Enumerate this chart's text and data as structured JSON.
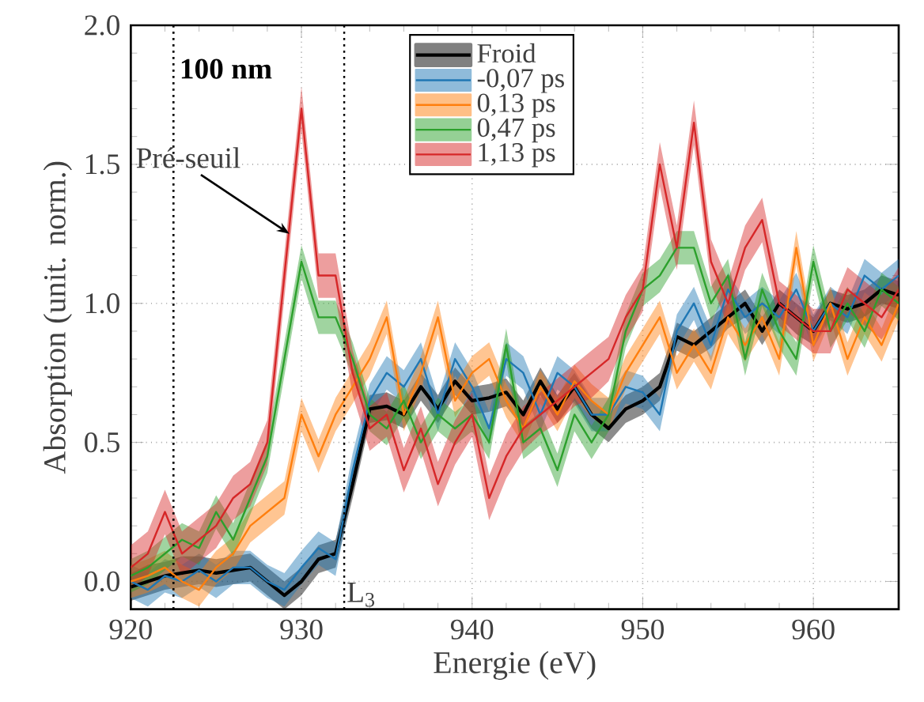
{
  "chart_data": {
    "type": "line",
    "xlabel": "Energie (eV)",
    "ylabel": "Absorption (unit. norm.)",
    "xlim": [
      920,
      965
    ],
    "ylim": [
      -0.1,
      2.0
    ],
    "xticks": [
      920,
      930,
      940,
      950,
      960
    ],
    "yticks": [
      {
        "value": 0,
        "label": "0.0"
      },
      {
        "value": 0.5,
        "label": "0.5"
      },
      {
        "value": 1,
        "label": "1.0"
      },
      {
        "value": 1.5,
        "label": "1.5"
      },
      {
        "value": 2,
        "label": "2.0"
      }
    ],
    "grid": true,
    "legend": "top",
    "marker": "none",
    "line_style": "solid",
    "x": [
      920,
      921,
      922,
      923,
      924,
      925,
      926,
      927,
      928,
      929,
      930,
      931,
      932,
      933,
      934,
      935,
      936,
      937,
      938,
      939,
      940,
      941,
      942,
      943,
      944,
      945,
      946,
      947,
      948,
      949,
      950,
      951,
      952,
      953,
      954,
      955,
      956,
      957,
      958,
      959,
      960,
      961,
      962,
      963,
      964,
      965
    ],
    "series": [
      {
        "name": "Froid",
        "color": "#000000",
        "values": [
          -0.02,
          0.0,
          0.02,
          0.03,
          0.04,
          0.03,
          0.04,
          0.05,
          0.0,
          -0.05,
          0.0,
          0.08,
          0.1,
          0.35,
          0.62,
          0.63,
          0.6,
          0.7,
          0.62,
          0.72,
          0.65,
          0.66,
          0.68,
          0.6,
          0.72,
          0.62,
          0.7,
          0.6,
          0.55,
          0.62,
          0.65,
          0.7,
          0.88,
          0.85,
          0.9,
          0.95,
          1.0,
          0.9,
          1.0,
          0.95,
          0.9,
          1.0,
          0.98,
          1.0,
          1.05,
          1.03
        ],
        "lower": [
          -0.07,
          -0.05,
          -0.03,
          -0.02,
          -0.01,
          -0.02,
          -0.01,
          0.0,
          -0.05,
          -0.1,
          -0.05,
          0.03,
          0.05,
          0.3,
          0.57,
          0.58,
          0.55,
          0.65,
          0.57,
          0.67,
          0.6,
          0.61,
          0.63,
          0.55,
          0.67,
          0.57,
          0.65,
          0.55,
          0.5,
          0.57,
          0.6,
          0.65,
          0.83,
          0.8,
          0.84,
          0.91,
          0.95,
          0.85,
          0.95,
          0.89,
          0.85,
          0.95,
          0.93,
          0.95,
          1.0,
          0.98
        ],
        "upper": [
          0.03,
          0.06,
          0.07,
          0.09,
          0.09,
          0.08,
          0.09,
          0.1,
          0.05,
          0.0,
          0.05,
          0.13,
          0.15,
          0.4,
          0.67,
          0.68,
          0.65,
          0.75,
          0.67,
          0.77,
          0.7,
          0.71,
          0.73,
          0.65,
          0.77,
          0.67,
          0.75,
          0.65,
          0.6,
          0.67,
          0.7,
          0.75,
          0.93,
          0.9,
          0.95,
          1.0,
          1.05,
          0.95,
          1.05,
          1.0,
          0.95,
          1.05,
          1.03,
          1.05,
          1.1,
          1.08
        ]
      },
      {
        "name": "-0,07 ps",
        "color": "#1f77b4",
        "values": [
          0.0,
          -0.03,
          0.02,
          0.0,
          0.04,
          0.0,
          0.05,
          0.05,
          0.0,
          -0.03,
          0.05,
          0.12,
          0.08,
          0.4,
          0.65,
          0.75,
          0.7,
          0.8,
          0.6,
          0.8,
          0.7,
          0.55,
          0.8,
          0.75,
          0.6,
          0.75,
          0.7,
          0.6,
          0.6,
          0.7,
          0.68,
          0.6,
          0.9,
          1.0,
          0.85,
          1.05,
          0.95,
          1.0,
          0.95,
          1.05,
          0.9,
          1.0,
          0.95,
          1.1,
          1.05,
          1.1
        ],
        "lower": [
          -0.06,
          -0.09,
          -0.04,
          -0.06,
          -0.02,
          -0.06,
          -0.01,
          -0.01,
          -0.06,
          -0.09,
          -0.01,
          0.06,
          0.02,
          0.34,
          0.59,
          0.69,
          0.64,
          0.74,
          0.54,
          0.74,
          0.64,
          0.49,
          0.74,
          0.69,
          0.54,
          0.69,
          0.64,
          0.54,
          0.54,
          0.64,
          0.62,
          0.54,
          0.84,
          0.94,
          0.79,
          0.99,
          0.89,
          0.94,
          0.89,
          0.99,
          0.84,
          0.94,
          0.89,
          1.04,
          0.99,
          1.04
        ],
        "upper": [
          0.06,
          0.03,
          0.08,
          0.06,
          0.1,
          0.06,
          0.11,
          0.11,
          0.06,
          0.03,
          0.11,
          0.18,
          0.14,
          0.46,
          0.71,
          0.81,
          0.76,
          0.86,
          0.66,
          0.86,
          0.76,
          0.61,
          0.86,
          0.81,
          0.66,
          0.81,
          0.76,
          0.66,
          0.66,
          0.76,
          0.74,
          0.66,
          0.96,
          1.06,
          0.91,
          1.11,
          1.01,
          1.06,
          1.01,
          1.11,
          0.96,
          1.06,
          1.01,
          1.16,
          1.11,
          1.16
        ]
      },
      {
        "name": "0,13 ps",
        "color": "#ff7f0e",
        "values": [
          0.0,
          0.02,
          0.05,
          0.0,
          -0.03,
          0.05,
          0.1,
          0.2,
          0.25,
          0.3,
          0.6,
          0.45,
          0.6,
          0.7,
          0.8,
          0.95,
          0.6,
          0.75,
          0.95,
          0.65,
          0.75,
          0.8,
          0.65,
          0.55,
          0.7,
          0.6,
          0.72,
          0.65,
          0.6,
          0.75,
          0.85,
          0.95,
          0.75,
          0.85,
          0.75,
          0.95,
          0.85,
          0.95,
          0.8,
          1.2,
          0.85,
          1.0,
          0.8,
          0.95,
          0.85,
          1.0
        ],
        "lower": [
          -0.06,
          -0.04,
          -0.01,
          -0.06,
          -0.09,
          -0.01,
          0.04,
          0.14,
          0.19,
          0.24,
          0.54,
          0.39,
          0.54,
          0.64,
          0.74,
          0.89,
          0.54,
          0.69,
          0.89,
          0.59,
          0.69,
          0.74,
          0.59,
          0.49,
          0.64,
          0.54,
          0.66,
          0.59,
          0.54,
          0.69,
          0.79,
          0.89,
          0.69,
          0.79,
          0.69,
          0.89,
          0.79,
          0.89,
          0.74,
          1.14,
          0.79,
          0.94,
          0.74,
          0.89,
          0.79,
          0.94
        ],
        "upper": [
          0.06,
          0.08,
          0.11,
          0.06,
          0.03,
          0.11,
          0.16,
          0.26,
          0.31,
          0.36,
          0.66,
          0.51,
          0.66,
          0.76,
          0.86,
          1.01,
          0.66,
          0.81,
          1.01,
          0.71,
          0.81,
          0.86,
          0.71,
          0.61,
          0.76,
          0.66,
          0.78,
          0.71,
          0.66,
          0.81,
          0.91,
          1.01,
          0.81,
          0.91,
          0.81,
          1.01,
          0.91,
          1.01,
          0.86,
          1.26,
          0.91,
          1.06,
          0.86,
          1.01,
          0.91,
          1.06
        ]
      },
      {
        "name": "0,47 ps",
        "color": "#2ca02c",
        "values": [
          0.02,
          0.05,
          0.1,
          0.15,
          0.12,
          0.25,
          0.15,
          0.3,
          0.45,
          0.8,
          1.15,
          0.95,
          0.95,
          0.8,
          0.6,
          0.55,
          0.65,
          0.5,
          0.6,
          0.55,
          0.6,
          0.5,
          0.85,
          0.5,
          0.55,
          0.4,
          0.6,
          0.5,
          0.6,
          0.9,
          1.05,
          1.1,
          1.2,
          1.2,
          1.0,
          1.1,
          0.8,
          1.05,
          0.9,
          0.8,
          1.15,
          0.9,
          1.0,
          0.9,
          1.05,
          1.0
        ],
        "lower": [
          -0.04,
          -0.01,
          0.04,
          0.09,
          0.06,
          0.19,
          0.09,
          0.24,
          0.39,
          0.74,
          1.09,
          0.89,
          0.89,
          0.74,
          0.54,
          0.49,
          0.59,
          0.44,
          0.54,
          0.49,
          0.54,
          0.44,
          0.79,
          0.44,
          0.49,
          0.34,
          0.54,
          0.44,
          0.54,
          0.84,
          0.99,
          1.04,
          1.14,
          1.14,
          0.94,
          1.04,
          0.74,
          0.99,
          0.84,
          0.74,
          1.09,
          0.84,
          0.94,
          0.84,
          0.99,
          0.94
        ],
        "upper": [
          0.08,
          0.11,
          0.16,
          0.21,
          0.18,
          0.31,
          0.21,
          0.36,
          0.51,
          0.86,
          1.21,
          1.01,
          1.01,
          0.86,
          0.66,
          0.61,
          0.71,
          0.56,
          0.66,
          0.61,
          0.66,
          0.56,
          0.91,
          0.56,
          0.61,
          0.46,
          0.66,
          0.56,
          0.66,
          0.96,
          1.11,
          1.16,
          1.26,
          1.26,
          1.06,
          1.16,
          0.86,
          1.11,
          0.96,
          0.86,
          1.21,
          0.96,
          1.06,
          0.96,
          1.11,
          1.06
        ]
      },
      {
        "name": "1,13 ps",
        "color": "#d62728",
        "values": [
          0.05,
          0.1,
          0.25,
          0.1,
          0.15,
          0.2,
          0.3,
          0.35,
          0.5,
          1.1,
          1.7,
          1.1,
          1.1,
          0.75,
          0.55,
          0.6,
          0.4,
          0.55,
          0.35,
          0.5,
          0.6,
          0.3,
          0.45,
          0.55,
          0.6,
          0.65,
          0.7,
          0.75,
          0.8,
          0.95,
          1.05,
          1.5,
          1.2,
          1.65,
          1.15,
          1.0,
          1.2,
          1.3,
          1.0,
          0.95,
          0.9,
          0.9,
          1.05,
          1.0,
          0.95,
          1.05
        ],
        "lower": [
          -0.03,
          0.02,
          0.17,
          0.02,
          0.07,
          0.12,
          0.22,
          0.27,
          0.42,
          1.02,
          1.62,
          1.02,
          1.02,
          0.67,
          0.47,
          0.52,
          0.32,
          0.47,
          0.27,
          0.42,
          0.52,
          0.22,
          0.37,
          0.47,
          0.53,
          0.57,
          0.63,
          0.66,
          0.72,
          0.87,
          0.97,
          1.42,
          1.12,
          1.57,
          1.07,
          0.92,
          1.12,
          1.22,
          0.92,
          0.87,
          0.82,
          0.82,
          0.97,
          0.92,
          0.87,
          0.97
        ],
        "upper": [
          0.13,
          0.18,
          0.33,
          0.18,
          0.23,
          0.28,
          0.38,
          0.43,
          0.58,
          1.18,
          1.78,
          1.18,
          1.18,
          0.83,
          0.63,
          0.68,
          0.48,
          0.63,
          0.43,
          0.58,
          0.68,
          0.38,
          0.53,
          0.63,
          0.68,
          0.73,
          0.78,
          0.83,
          0.88,
          1.03,
          1.13,
          1.58,
          1.28,
          1.73,
          1.23,
          1.08,
          1.28,
          1.38,
          1.08,
          1.03,
          0.98,
          0.98,
          1.13,
          1.08,
          1.03,
          1.13
        ]
      }
    ],
    "ref_lines": [
      {
        "axis": "x",
        "value": 922.5,
        "line_style": "dotted"
      },
      {
        "axis": "x",
        "value": 932.5,
        "label": "L$_{3}$",
        "line_style": "dotted"
      }
    ],
    "annotations": [
      "100 nm",
      {
        "text": "Pré-seuil",
        "x": 929.3,
        "y": 1.25
      }
    ]
  }
}
